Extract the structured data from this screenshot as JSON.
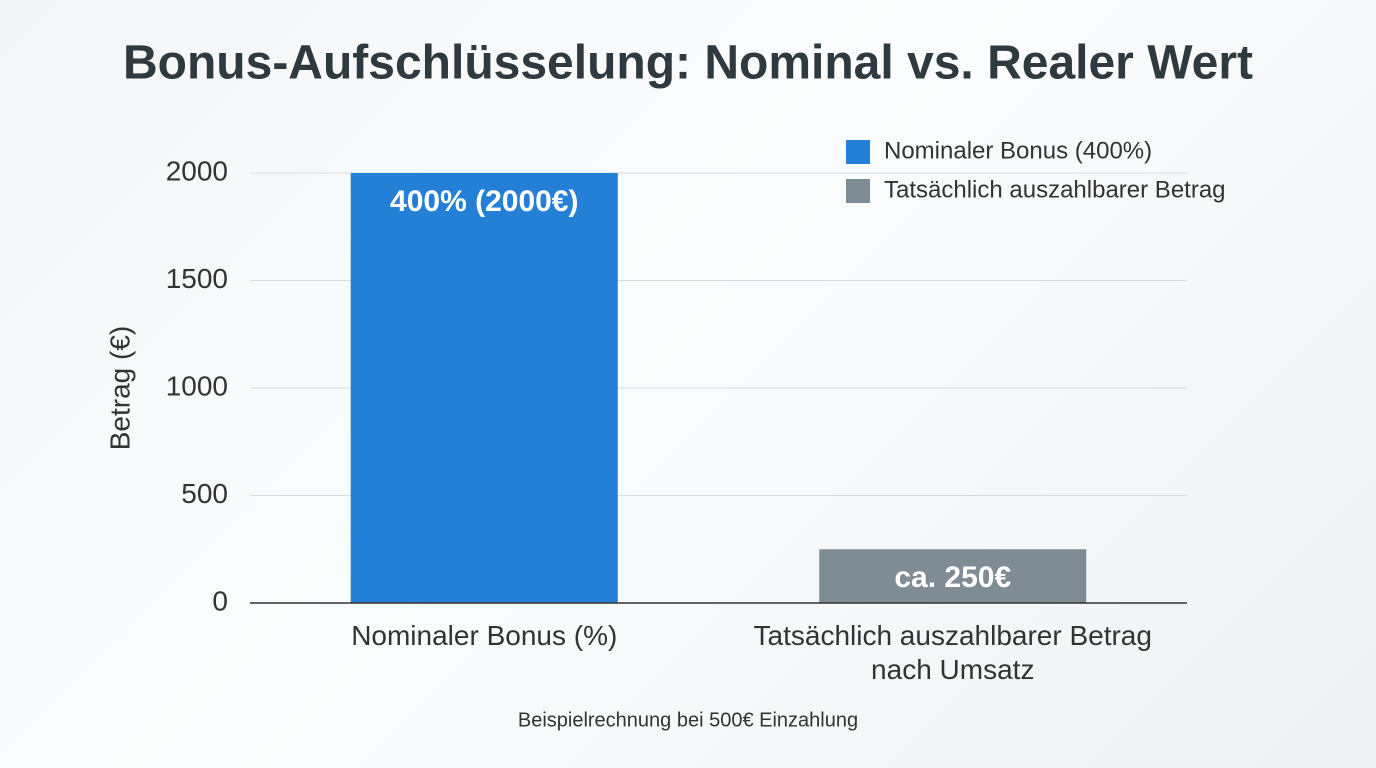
{
  "chart_data": {
    "type": "bar",
    "title": "Bonus-Aufschlüsselung: Nominal vs. Realer Wert",
    "y_label": "Betrag (€)",
    "note": "Beispielrechnung bei 500€ Einzahlung",
    "categories": [
      "Nominaler Bonus (%)",
      "Tatsächlich auszahlbarer Betrag nach Umsatz"
    ],
    "series": [
      {
        "name": "Nominaler Bonus (400%)",
        "color": "#2480d6",
        "values": [
          2000,
          null
        ],
        "value_labels": [
          "400% (2000€)",
          null
        ]
      },
      {
        "name": "Tatsächlich auszahlbarer Betrag",
        "color": "#7f8c93",
        "values": [
          null,
          250
        ],
        "value_labels": [
          null,
          "ca. 250€"
        ]
      }
    ],
    "ylim": [
      0,
      2000
    ],
    "yticks": [
      0,
      500,
      1000,
      1500,
      2000
    ],
    "grid": true,
    "legend": "top-right"
  }
}
